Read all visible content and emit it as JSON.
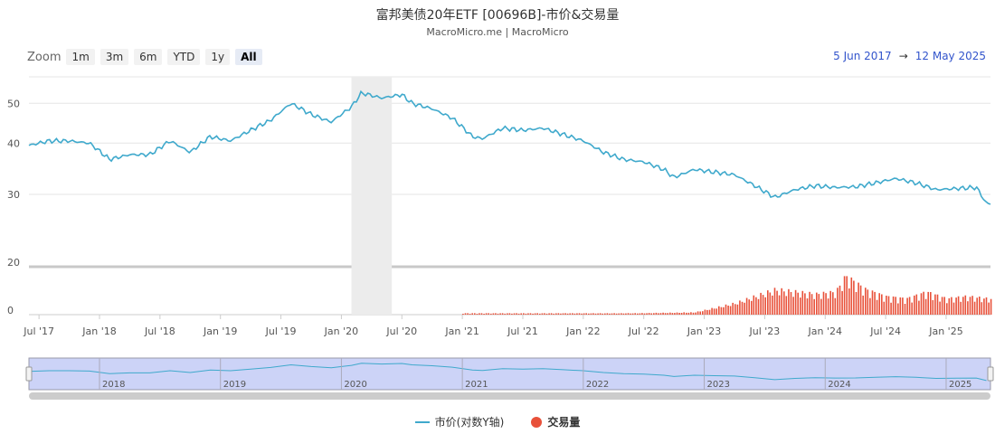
{
  "title": "富邦美债20年ETF [00696B]-市价&交易量",
  "subtitle": "MacroMicro.me | MacroMicro",
  "zoom": {
    "label": "Zoom",
    "buttons": [
      "1m",
      "3m",
      "6m",
      "YTD",
      "1y",
      "All"
    ],
    "active": "All"
  },
  "range": {
    "from": "5 Jun 2017",
    "arrow": "→",
    "to": "12 May 2025"
  },
  "legend": {
    "price": "市价(对数Y轴)",
    "volume": "交易量"
  },
  "colors": {
    "price": "#3fa9cc",
    "volume": "#e8513a",
    "navigator_fill": "#ccd3f7",
    "recession": "#ececec"
  },
  "chart_data": {
    "type": "line",
    "x_ticks": [
      "Jul '17",
      "Jan '18",
      "Jul '18",
      "Jan '19",
      "Jul '19",
      "Jan '20",
      "Jul '20",
      "Jan '21",
      "Jul '21",
      "Jan '22",
      "Jul '22",
      "Jan '23",
      "Jul '23",
      "Jan '24",
      "Jul '24",
      "Jan '25"
    ],
    "y_ticks": [
      50,
      40,
      30,
      20,
      0
    ],
    "y_scale": "log",
    "navigator_labels": [
      "2018",
      "2019",
      "2020",
      "2021",
      "2022",
      "2023",
      "2024",
      "2025"
    ],
    "shaded_period": [
      "2020-02",
      "2020-06"
    ],
    "series": [
      {
        "name": "市价(对数Y轴)",
        "x": [
          "2017-06",
          "2017-08",
          "2017-10",
          "2017-12",
          "2018-02",
          "2018-04",
          "2018-06",
          "2018-08",
          "2018-10",
          "2018-12",
          "2019-02",
          "2019-04",
          "2019-06",
          "2019-08",
          "2019-10",
          "2019-12",
          "2020-02",
          "2020-03",
          "2020-05",
          "2020-07",
          "2020-08",
          "2020-10",
          "2020-12",
          "2021-02",
          "2021-03",
          "2021-05",
          "2021-07",
          "2021-09",
          "2021-11",
          "2022-01",
          "2022-03",
          "2022-05",
          "2022-07",
          "2022-09",
          "2022-10",
          "2022-12",
          "2023-02",
          "2023-04",
          "2023-06",
          "2023-08",
          "2023-10",
          "2023-12",
          "2024-02",
          "2024-04",
          "2024-06",
          "2024-08",
          "2024-10",
          "2024-12",
          "2025-02",
          "2025-04",
          "2025-05"
        ],
        "values": [
          39.5,
          40.5,
          40.5,
          40,
          36.5,
          37.5,
          37.5,
          40.5,
          38,
          41.5,
          40.5,
          43,
          45.5,
          50,
          47,
          45,
          49,
          53,
          51.5,
          52.5,
          50,
          48.5,
          46,
          41.5,
          41,
          43.5,
          43,
          43.5,
          42,
          40.5,
          38,
          36.5,
          36,
          34.5,
          33,
          34.5,
          34,
          33.5,
          31.5,
          29.5,
          30.8,
          31.5,
          31.2,
          31.3,
          32,
          32.8,
          32,
          30.8,
          31,
          31.2,
          28.5
        ]
      },
      {
        "name": "交易量",
        "x": [
          "2021-01",
          "2021-06",
          "2021-12",
          "2022-06",
          "2022-12",
          "2023-02",
          "2023-04",
          "2023-06",
          "2023-08",
          "2023-10",
          "2023-12",
          "2024-02",
          "2024-03",
          "2024-05",
          "2024-07",
          "2024-09",
          "2024-11",
          "2025-01",
          "2025-03",
          "2025-05"
        ],
        "values": [
          0.03,
          0.03,
          0.03,
          0.03,
          0.05,
          0.15,
          0.25,
          0.4,
          0.55,
          0.5,
          0.45,
          0.5,
          0.85,
          0.55,
          0.4,
          0.35,
          0.5,
          0.35,
          0.4,
          0.35
        ]
      }
    ]
  }
}
